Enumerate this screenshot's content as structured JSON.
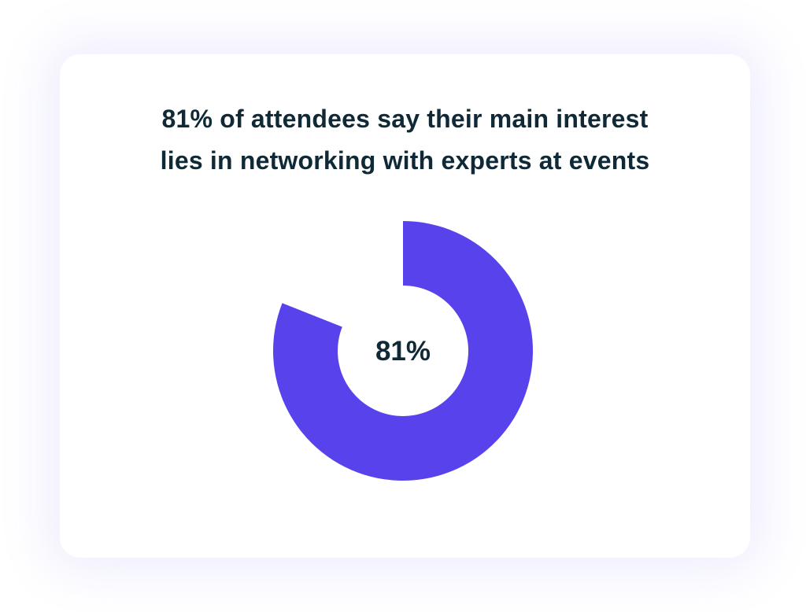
{
  "card": {
    "title_lines": [
      "81% of attendees say their main interest",
      "lies in networking with experts at events"
    ]
  },
  "chart_data": {
    "type": "pie",
    "variant": "donut",
    "slices": [
      {
        "value": 81,
        "color": "#5842ec"
      },
      {
        "value": 19,
        "color": "#ffffff"
      }
    ],
    "center_label": "81%",
    "accent_color": "#5842ec",
    "text_color": "#0f2a36"
  }
}
